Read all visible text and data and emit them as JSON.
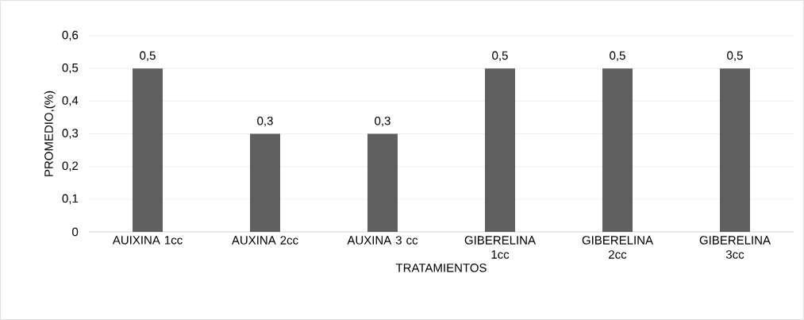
{
  "chart_data": {
    "type": "bar",
    "xlabel": "TRATAMIENTOS",
    "ylabel": "PROMEDIO,(%)",
    "categories": [
      "AUIXINA 1cc",
      "AUXINA 2cc",
      "AUXINA 3 cc",
      "GIBERELINA 1cc",
      "GIBERELINA 2cc",
      "GIBERELINA 3cc"
    ],
    "values": [
      0.5,
      0.3,
      0.3,
      0.5,
      0.5,
      0.5
    ],
    "value_labels": [
      "0,5",
      "0,3",
      "0,3",
      "0,5",
      "0,5",
      "0,5"
    ],
    "color": "#5f5f5f",
    "ylim": [
      0,
      0.6
    ],
    "yticks": [
      {
        "value": 0,
        "label": "0"
      },
      {
        "value": 0.1,
        "label": "0,1"
      },
      {
        "value": 0.2,
        "label": "0,2"
      },
      {
        "value": 0.3,
        "label": "0,3"
      },
      {
        "value": 0.4,
        "label": "0,4"
      },
      {
        "value": 0.5,
        "label": "0,5"
      },
      {
        "value": 0.6,
        "label": "0,6"
      }
    ],
    "grid": "y"
  }
}
